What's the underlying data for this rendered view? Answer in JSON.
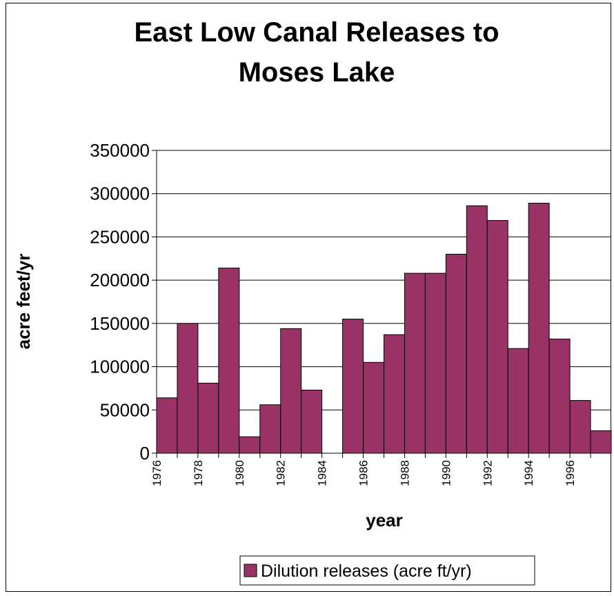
{
  "chart_data": {
    "type": "bar",
    "title": [
      "East Low  Canal Releases to",
      "Moses Lake"
    ],
    "xlabel": "year",
    "ylabel": "acre feet/yr",
    "ylim": [
      0,
      350000
    ],
    "yticks": [
      0,
      50000,
      100000,
      150000,
      200000,
      250000,
      300000,
      350000
    ],
    "grid": true,
    "legend_position": "bottom",
    "bar_color": "#993366",
    "categories": [
      "1976",
      "1977",
      "1978",
      "1979",
      "1980",
      "1981",
      "1982",
      "1983",
      "1984",
      "1985",
      "1986",
      "1987",
      "1988",
      "1989",
      "1990",
      "1991",
      "1992",
      "1993",
      "1994",
      "1995",
      "1996",
      "1997"
    ],
    "tick_labels": [
      "1976",
      "",
      "1978",
      "",
      "1980",
      "",
      "1982",
      "",
      "1984",
      "",
      "1986",
      "",
      "1988",
      "",
      "1990",
      "",
      "1992",
      "",
      "1994",
      "",
      "1996",
      ""
    ],
    "series": [
      {
        "name": "Dilution releases (acre ft/yr)",
        "values": [
          64000,
          150000,
          81000,
          214000,
          19000,
          56000,
          144000,
          73000,
          0,
          155000,
          105000,
          137000,
          208000,
          208000,
          230000,
          286000,
          269000,
          121000,
          289000,
          132000,
          61000,
          26000
        ]
      }
    ]
  }
}
